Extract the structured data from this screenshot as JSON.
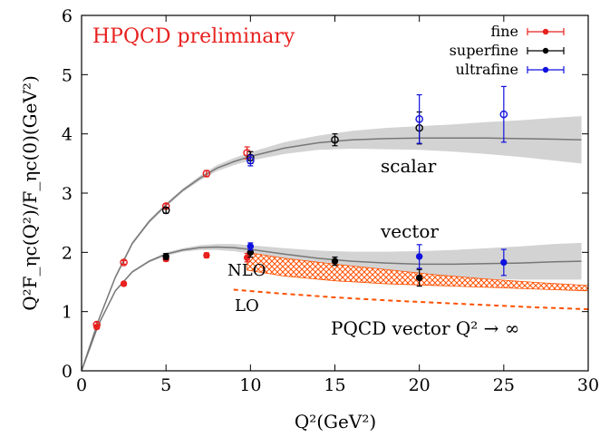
{
  "chart_data": {
    "type": "scatter",
    "title": "",
    "watermark": "HPQCD preliminary",
    "xlabel": "Q²(GeV²)",
    "ylabel": "Q²F_ηc(Q²)/F_ηc(0)(GeV²)",
    "xlim": [
      0,
      30
    ],
    "ylim": [
      0,
      6
    ],
    "x_ticks": [
      "0",
      "5",
      "10",
      "15",
      "20",
      "25",
      "30"
    ],
    "y_ticks": [
      "0",
      "1",
      "2",
      "3",
      "4",
      "5",
      "6"
    ],
    "grid": false,
    "legend_position": "top-right",
    "legend": [
      {
        "name": "fine",
        "color": "#e8201e"
      },
      {
        "name": "superfine",
        "color": "#000000"
      },
      {
        "name": "ultrafine",
        "color": "#1010e0"
      }
    ],
    "annotations": {
      "scalar": "scalar",
      "vector": "vector",
      "nlo": "NLO",
      "lo": "LO",
      "pqcd": "PQCD vector Q² → ∞"
    },
    "colors": {
      "fine": "#e8201e",
      "superfine": "#000000",
      "ultrafine": "#1010e0",
      "fit_line": "#777777",
      "fit_band": "#d3d3d3",
      "pqcd": "#ff5000",
      "watermark": "#e8201e"
    },
    "points": [
      {
        "series": "fine",
        "kind": "scalar",
        "x": 0.9,
        "y": 0.78,
        "err": 0.04
      },
      {
        "series": "fine",
        "kind": "scalar",
        "x": 2.5,
        "y": 1.83,
        "err": 0.03
      },
      {
        "series": "fine",
        "kind": "scalar",
        "x": 5.0,
        "y": 2.78,
        "err": 0.04
      },
      {
        "series": "fine",
        "kind": "scalar",
        "x": 7.4,
        "y": 3.33,
        "err": 0.05
      },
      {
        "series": "fine",
        "kind": "scalar",
        "x": 9.8,
        "y": 3.68,
        "err": 0.1
      },
      {
        "series": "fine",
        "kind": "vector",
        "x": 0.9,
        "y": 0.74,
        "err": 0.03
      },
      {
        "series": "fine",
        "kind": "vector",
        "x": 2.5,
        "y": 1.47,
        "err": 0.03
      },
      {
        "series": "fine",
        "kind": "vector",
        "x": 5.0,
        "y": 1.89,
        "err": 0.04
      },
      {
        "series": "fine",
        "kind": "vector",
        "x": 7.4,
        "y": 1.95,
        "err": 0.04
      },
      {
        "series": "fine",
        "kind": "vector",
        "x": 9.8,
        "y": 1.91,
        "err": 0.07
      },
      {
        "series": "superfine",
        "kind": "scalar",
        "x": 5.0,
        "y": 2.71,
        "err": 0.05
      },
      {
        "series": "superfine",
        "kind": "scalar",
        "x": 10.0,
        "y": 3.6,
        "err": 0.1
      },
      {
        "series": "superfine",
        "kind": "scalar",
        "x": 15.0,
        "y": 3.9,
        "err": 0.1
      },
      {
        "series": "superfine",
        "kind": "scalar",
        "x": 20.0,
        "y": 4.1,
        "err": 0.27
      },
      {
        "series": "superfine",
        "kind": "vector",
        "x": 5.0,
        "y": 1.93,
        "err": 0.05
      },
      {
        "series": "superfine",
        "kind": "vector",
        "x": 10.0,
        "y": 2.0,
        "err": 0.08
      },
      {
        "series": "superfine",
        "kind": "vector",
        "x": 15.0,
        "y": 1.85,
        "err": 0.07
      },
      {
        "series": "superfine",
        "kind": "vector",
        "x": 20.0,
        "y": 1.57,
        "err": 0.14
      },
      {
        "series": "ultrafine",
        "kind": "scalar",
        "x": 10.0,
        "y": 3.55,
        "err": 0.09
      },
      {
        "series": "ultrafine",
        "kind": "scalar",
        "x": 20.0,
        "y": 4.25,
        "err": 0.41
      },
      {
        "series": "ultrafine",
        "kind": "scalar",
        "x": 25.0,
        "y": 4.33,
        "err": 0.47
      },
      {
        "series": "ultrafine",
        "kind": "vector",
        "x": 10.0,
        "y": 2.1,
        "err": 0.06
      },
      {
        "series": "ultrafine",
        "kind": "vector",
        "x": 20.0,
        "y": 1.93,
        "err": 0.2
      },
      {
        "series": "ultrafine",
        "kind": "vector",
        "x": 25.0,
        "y": 1.83,
        "err": 0.22
      }
    ],
    "fits": [
      {
        "name": "scalar",
        "x": [
          0,
          1,
          2,
          3,
          4,
          5,
          6,
          7,
          8,
          9,
          10,
          12,
          14,
          16,
          18,
          20,
          22,
          24,
          26,
          28,
          29.6
        ],
        "y": [
          0,
          0.85,
          1.58,
          2.15,
          2.52,
          2.8,
          3.05,
          3.25,
          3.42,
          3.53,
          3.62,
          3.76,
          3.85,
          3.9,
          3.92,
          3.93,
          3.93,
          3.93,
          3.92,
          3.91,
          3.9
        ],
        "band": [
          0,
          0.02,
          0.03,
          0.03,
          0.03,
          0.03,
          0.03,
          0.04,
          0.05,
          0.06,
          0.07,
          0.1,
          0.12,
          0.15,
          0.18,
          0.2,
          0.23,
          0.27,
          0.31,
          0.36,
          0.4
        ]
      },
      {
        "name": "vector",
        "x": [
          0,
          1,
          2,
          3,
          4,
          5,
          6,
          7,
          8,
          9,
          10,
          12,
          14,
          16,
          18,
          20,
          22,
          24,
          26,
          28,
          29.6
        ],
        "y": [
          0,
          0.78,
          1.35,
          1.67,
          1.85,
          1.97,
          2.04,
          2.08,
          2.09,
          2.08,
          2.05,
          1.97,
          1.9,
          1.85,
          1.82,
          1.8,
          1.8,
          1.81,
          1.82,
          1.84,
          1.85
        ],
        "band": [
          0,
          0.02,
          0.02,
          0.02,
          0.02,
          0.03,
          0.03,
          0.04,
          0.05,
          0.06,
          0.07,
          0.1,
          0.13,
          0.16,
          0.19,
          0.22,
          0.24,
          0.26,
          0.28,
          0.3,
          0.31
        ]
      }
    ],
    "pqcd": {
      "nlo": {
        "x": [
          9.8,
          12,
          15,
          18,
          21,
          24,
          27,
          30
        ],
        "y_low": [
          1.7,
          1.6,
          1.52,
          1.47,
          1.44,
          1.41,
          1.38,
          1.35
        ],
        "y_high": [
          2.0,
          1.9,
          1.8,
          1.71,
          1.62,
          1.55,
          1.49,
          1.44
        ]
      },
      "lo": {
        "x": [
          9,
          12,
          15,
          18,
          21,
          24,
          27,
          30
        ],
        "y": [
          1.37,
          1.3,
          1.24,
          1.19,
          1.15,
          1.11,
          1.07,
          1.04
        ]
      }
    }
  }
}
